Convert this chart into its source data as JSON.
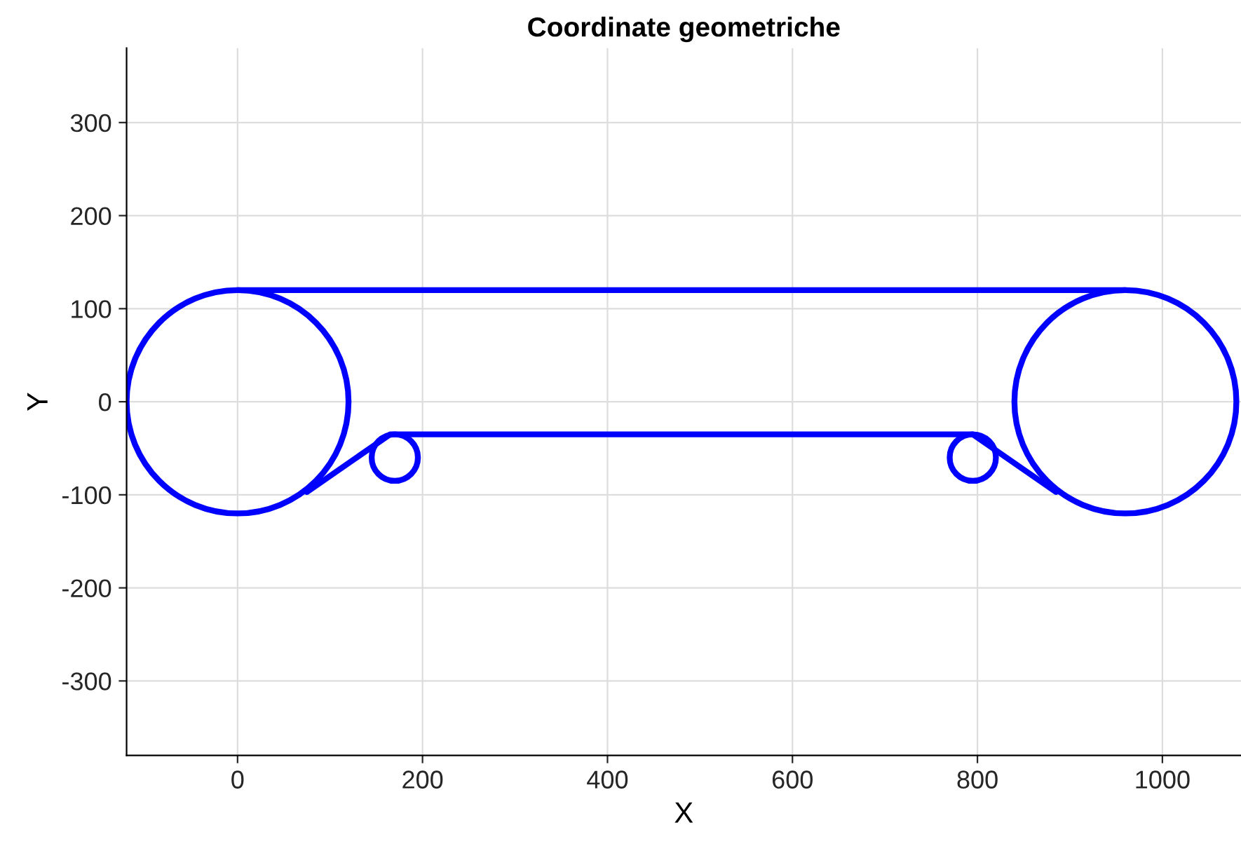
{
  "chart_data": {
    "type": "line",
    "title": "Coordinate geometriche",
    "xlabel": "X",
    "ylabel": "Y",
    "xlim": [
      -120,
      1085
    ],
    "ylim": [
      -380,
      380
    ],
    "xticks": [
      0,
      200,
      400,
      600,
      800,
      1000
    ],
    "yticks": [
      -300,
      -200,
      -100,
      0,
      100,
      200,
      300
    ],
    "grid": true,
    "marker": "none",
    "line_style": "solid",
    "series": [
      {
        "color": "#0000ff",
        "x": [
          0,
          960
        ],
        "values": [
          120,
          120
        ]
      },
      {
        "color": "#0000ff",
        "x": [
          75,
          165,
          795,
          885
        ],
        "values": [
          -97,
          -35,
          -35,
          -97
        ]
      }
    ]
  }
}
